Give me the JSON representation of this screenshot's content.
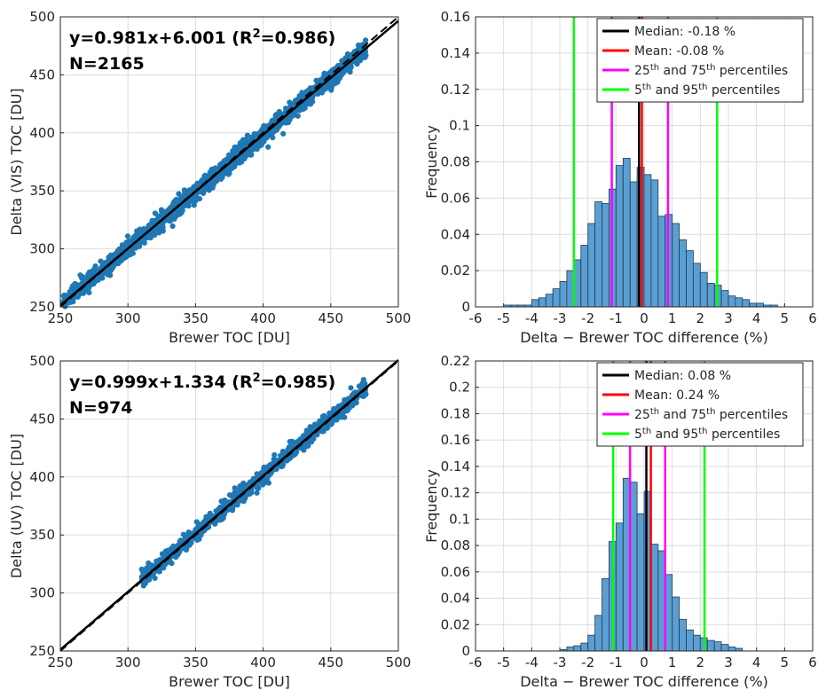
{
  "chart_data": [
    {
      "type": "scatter",
      "xlabel": "Brewer TOC [DU]",
      "ylabel": "Delta (VIS) TOC [DU]",
      "xlim": [
        250,
        500
      ],
      "ylim": [
        250,
        500
      ],
      "xticks": [
        250,
        300,
        350,
        400,
        450,
        500
      ],
      "yticks": [
        250,
        300,
        350,
        400,
        450,
        500
      ],
      "grid": true,
      "annotation_eq": "y=0.981x+6.001 (R",
      "annotation_eq_tail": "=0.986)",
      "annotation_sup": "2",
      "annotation_n": "N=2165",
      "fit": {
        "slope": 0.981,
        "intercept": 6.001,
        "r2": 0.986
      },
      "n": 2165,
      "x_range": [
        252,
        476
      ],
      "point_color": "#1f77b4",
      "line_color": "#000000"
    },
    {
      "type": "bar",
      "xlabel": "Delta − Brewer TOC difference (%)",
      "ylabel": "Frequency",
      "xlim": [
        -6,
        6
      ],
      "ylim": [
        0,
        0.16
      ],
      "xticks": [
        -6,
        -5,
        -4,
        -3,
        -2,
        -1,
        0,
        1,
        2,
        3,
        4,
        5,
        6
      ],
      "yticks": [
        "0",
        "0.02",
        "0.04",
        "0.06",
        "0.08",
        "0.1",
        "0.12",
        "0.14",
        "0.16"
      ],
      "grid": true,
      "bin_start": -5,
      "bin_width": 0.25,
      "values": [
        0.001,
        0.001,
        0.001,
        0.001,
        0.004,
        0.005,
        0.007,
        0.01,
        0.014,
        0.02,
        0.026,
        0.034,
        0.046,
        0.058,
        0.057,
        0.065,
        0.078,
        0.082,
        0.069,
        0.077,
        0.073,
        0.07,
        0.05,
        0.051,
        0.046,
        0.037,
        0.031,
        0.024,
        0.019,
        0.013,
        0.012,
        0.009,
        0.006,
        0.005,
        0.004,
        0.002,
        0.002,
        0.001,
        0.001
      ],
      "bar_color": "#5b9fd2",
      "lines": [
        {
          "x": -0.18,
          "color": "#000000"
        },
        {
          "x": -0.08,
          "color": "#ff0000"
        },
        {
          "x": -1.15,
          "color": "#ff00ff"
        },
        {
          "x": 0.85,
          "color": "#ff00ff"
        },
        {
          "x": -2.5,
          "color": "#00ff00"
        },
        {
          "x": 2.6,
          "color": "#00ff00"
        }
      ],
      "legend_position": "top-right",
      "legend": [
        {
          "color": "#000000",
          "text": "Median: -0.18 %"
        },
        {
          "color": "#ff0000",
          "text": "Mean: -0.08 %"
        },
        {
          "color": "#ff00ff",
          "text": "25",
          "sup": "th",
          "mid": " and 75",
          "sup2": "th",
          "tail": " percentiles"
        },
        {
          "color": "#00ff00",
          "text": "5",
          "sup": "th",
          "mid": " and 95",
          "sup2": "th",
          "tail": " percentiles"
        }
      ]
    },
    {
      "type": "scatter",
      "xlabel": "Brewer TOC [DU]",
      "ylabel": "Delta (UV) TOC [DU]",
      "xlim": [
        250,
        500
      ],
      "ylim": [
        250,
        500
      ],
      "xticks": [
        250,
        300,
        350,
        400,
        450,
        500
      ],
      "yticks": [
        250,
        300,
        350,
        400,
        450,
        500
      ],
      "grid": true,
      "annotation_eq": "y=0.999x+1.334 (R",
      "annotation_eq_tail": "=0.985)",
      "annotation_sup": "2",
      "annotation_n": "N=974",
      "fit": {
        "slope": 0.999,
        "intercept": 1.334,
        "r2": 0.985
      },
      "n": 974,
      "x_range": [
        310,
        476
      ],
      "point_color": "#1f77b4",
      "line_color": "#000000"
    },
    {
      "type": "bar",
      "xlabel": "Delta − Brewer TOC difference (%)",
      "ylabel": "Frequency",
      "xlim": [
        -6,
        6
      ],
      "ylim": [
        0,
        0.22
      ],
      "xticks": [
        -6,
        -5,
        -4,
        -3,
        -2,
        -1,
        0,
        1,
        2,
        3,
        4,
        5,
        6
      ],
      "yticks": [
        "0",
        "0.02",
        "0.04",
        "0.06",
        "0.08",
        "0.1",
        "0.12",
        "0.14",
        "0.16",
        "0.18",
        "0.2",
        "0.22"
      ],
      "grid": true,
      "bin_start": -3,
      "bin_width": 0.25,
      "values": [
        0.001,
        0.003,
        0.004,
        0.006,
        0.012,
        0.027,
        0.055,
        0.083,
        0.097,
        0.131,
        0.128,
        0.104,
        0.121,
        0.081,
        0.076,
        0.058,
        0.041,
        0.024,
        0.016,
        0.012,
        0.01,
        0.008,
        0.007,
        0.005,
        0.003,
        0.002
      ],
      "bar_color": "#5b9fd2",
      "lines": [
        {
          "x": 0.08,
          "color": "#000000"
        },
        {
          "x": 0.24,
          "color": "#ff0000"
        },
        {
          "x": -0.5,
          "color": "#ff00ff"
        },
        {
          "x": 0.75,
          "color": "#ff00ff"
        },
        {
          "x": -1.1,
          "color": "#00ff00"
        },
        {
          "x": 2.15,
          "color": "#00ff00"
        }
      ],
      "legend_position": "top-right",
      "legend": [
        {
          "color": "#000000",
          "text": "Median: 0.08 %"
        },
        {
          "color": "#ff0000",
          "text": "Mean: 0.24 %"
        },
        {
          "color": "#ff00ff",
          "text": "25",
          "sup": "th",
          "mid": " and 75",
          "sup2": "th",
          "tail": " percentiles"
        },
        {
          "color": "#00ff00",
          "text": "5",
          "sup": "th",
          "mid": " and 95",
          "sup2": "th",
          "tail": " percentiles"
        }
      ]
    }
  ]
}
